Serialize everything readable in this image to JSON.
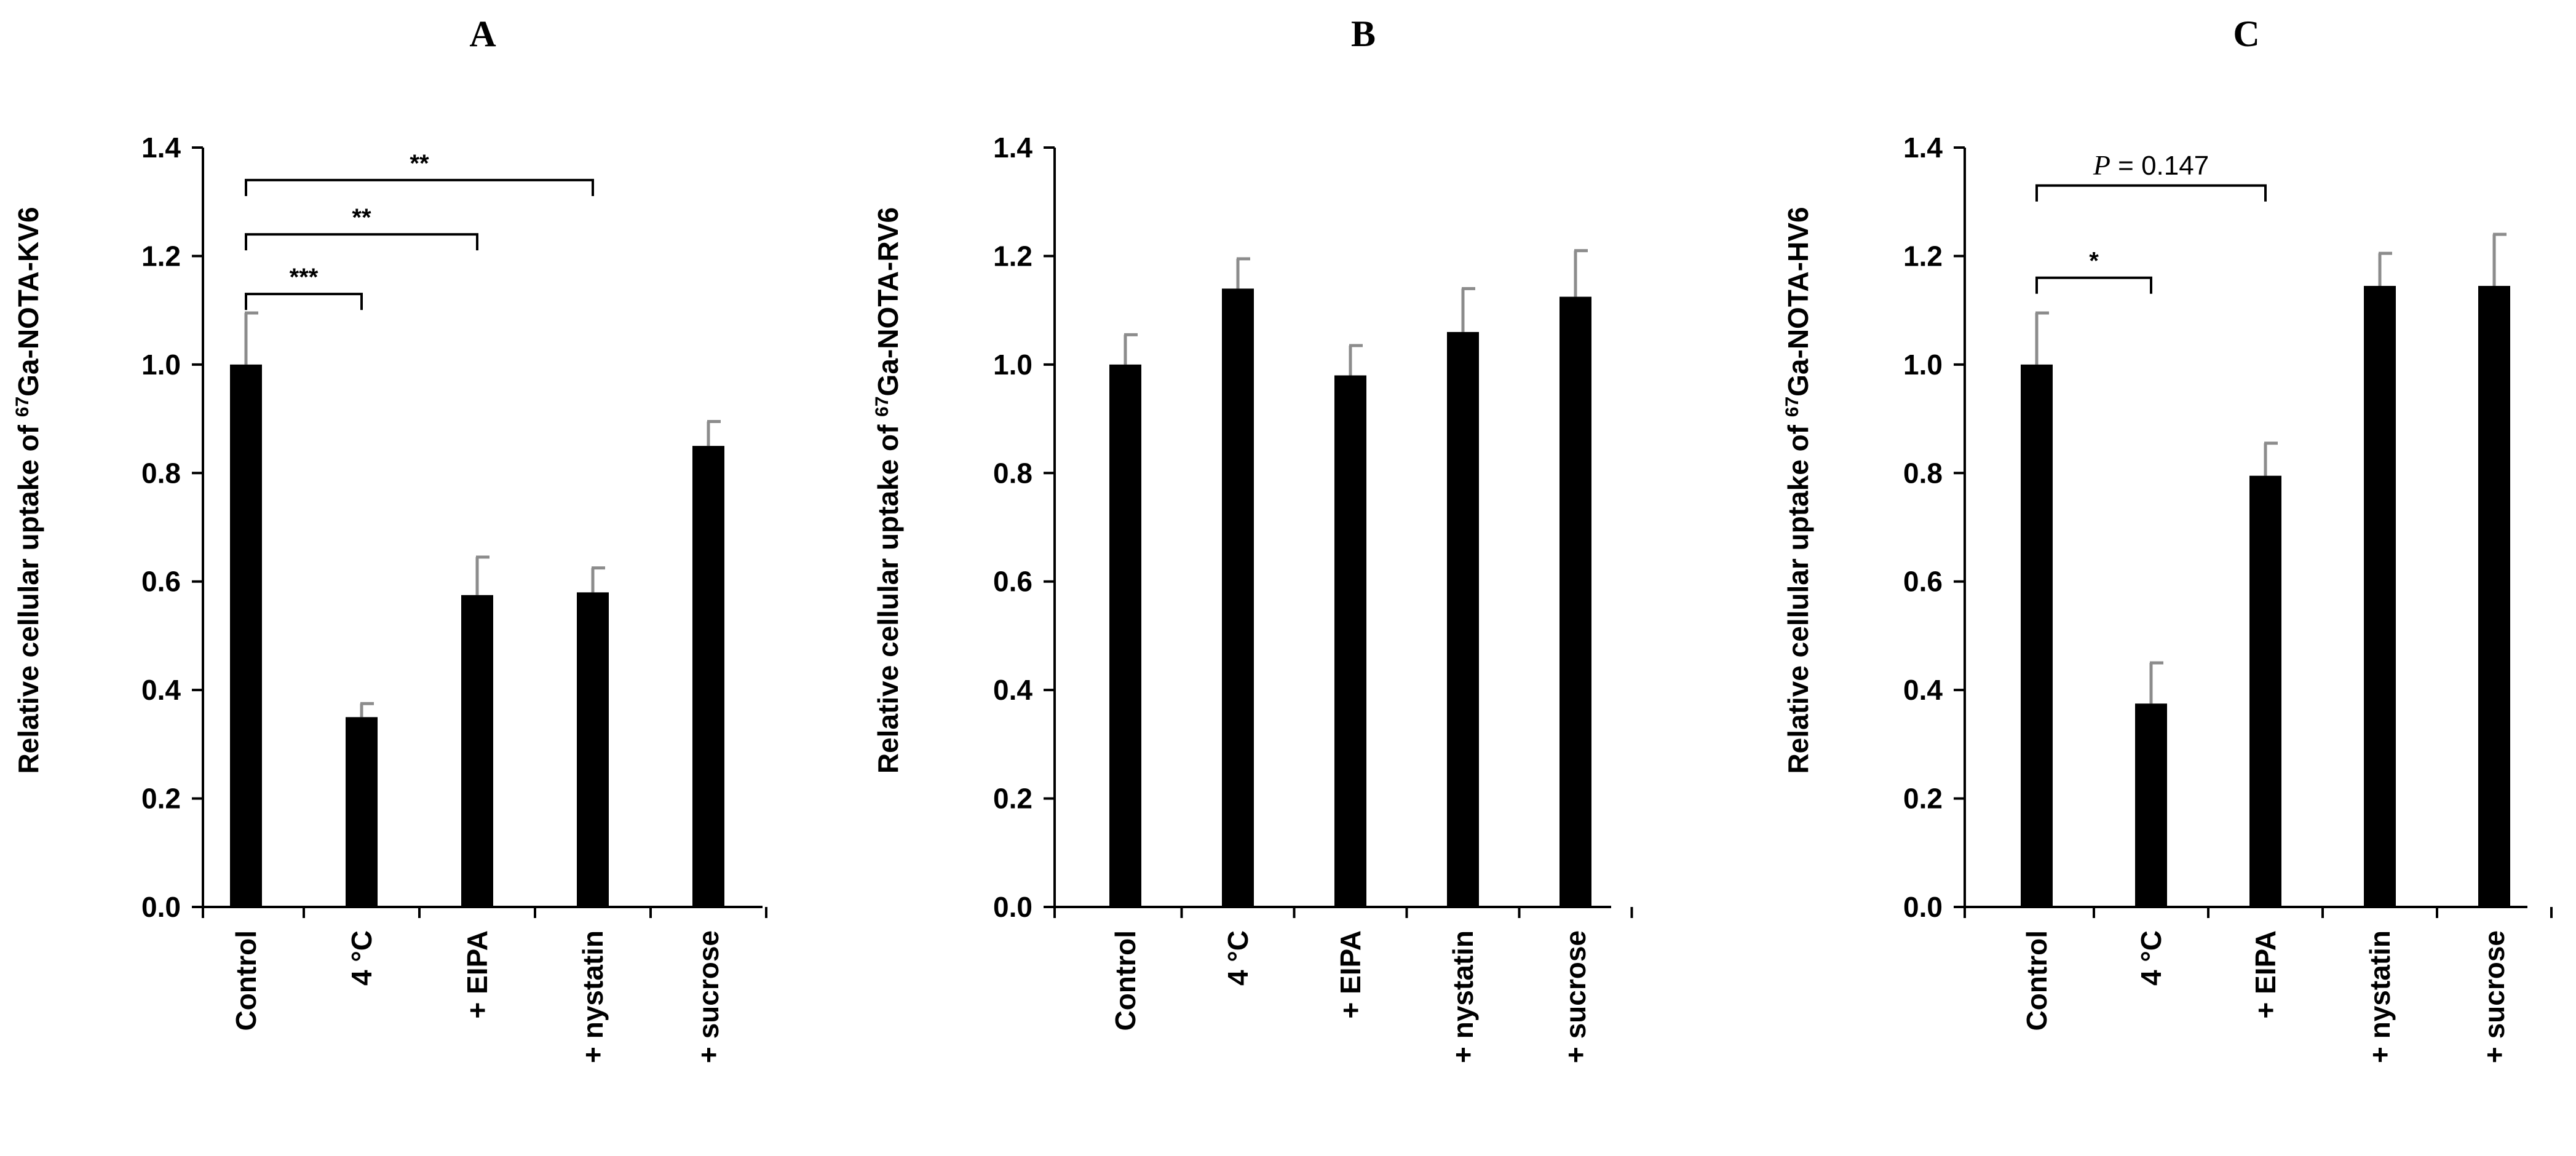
{
  "chart_data": [
    {
      "type": "bar",
      "panel_label": "A",
      "ylabel": {
        "prefix": "Relative cellular uptake of ",
        "sup": "67",
        "suffix": "Ga-NOTA-KV6"
      },
      "categories": [
        "Control",
        "4 °C",
        "+ EIPA",
        "+ nystatin",
        "+ sucrose"
      ],
      "values": [
        1.0,
        0.35,
        0.575,
        0.58,
        0.85
      ],
      "errors": [
        0.095,
        0.025,
        0.07,
        0.045,
        0.045
      ],
      "ylim": [
        0,
        1.4
      ],
      "yticks": [
        "0.0",
        "0.2",
        "0.4",
        "0.6",
        "0.8",
        "1.0",
        "1.2",
        "1.4"
      ],
      "grid": false,
      "significance": [
        {
          "from": 0,
          "to": 1,
          "y": 1.13,
          "label": "***"
        },
        {
          "from": 0,
          "to": 2,
          "y": 1.24,
          "label": "**"
        },
        {
          "from": 0,
          "to": 3,
          "y": 1.34,
          "label": "**"
        }
      ]
    },
    {
      "type": "bar",
      "panel_label": "B",
      "ylabel": {
        "prefix": "Relative cellular uptake of ",
        "sup": "67",
        "suffix": "Ga-NOTA-RV6"
      },
      "categories": [
        "Control",
        "4 °C",
        "+ EIPA",
        "+ nystatin",
        "+ sucrose"
      ],
      "values": [
        1.0,
        1.14,
        0.98,
        1.06,
        1.125
      ],
      "errors": [
        0.055,
        0.055,
        0.055,
        0.08,
        0.085
      ],
      "ylim": [
        0,
        1.4
      ],
      "yticks": [
        "0.0",
        "0.2",
        "0.4",
        "0.6",
        "0.8",
        "1.0",
        "1.2",
        "1.4"
      ],
      "grid": false,
      "significance": []
    },
    {
      "type": "bar",
      "panel_label": "C",
      "ylabel": {
        "prefix": "Relative cellular uptake of ",
        "sup": "67",
        "suffix": "Ga-NOTA-HV6"
      },
      "categories": [
        "Control",
        "4 °C",
        "+ EIPA",
        "+ nystatin",
        "+ sucrose"
      ],
      "values": [
        1.0,
        0.375,
        0.795,
        1.145,
        1.145
      ],
      "errors": [
        0.095,
        0.075,
        0.06,
        0.06,
        0.095
      ],
      "ylim": [
        0,
        1.4
      ],
      "yticks": [
        "0.0",
        "0.2",
        "0.4",
        "0.6",
        "0.8",
        "1.0",
        "1.2",
        "1.4"
      ],
      "grid": false,
      "significance": [
        {
          "from": 0,
          "to": 1,
          "y": 1.16,
          "label": "*"
        },
        {
          "from": 0,
          "to": 2,
          "y": 1.33,
          "label_italic": "P",
          "label": " = 0.147"
        }
      ]
    }
  ]
}
